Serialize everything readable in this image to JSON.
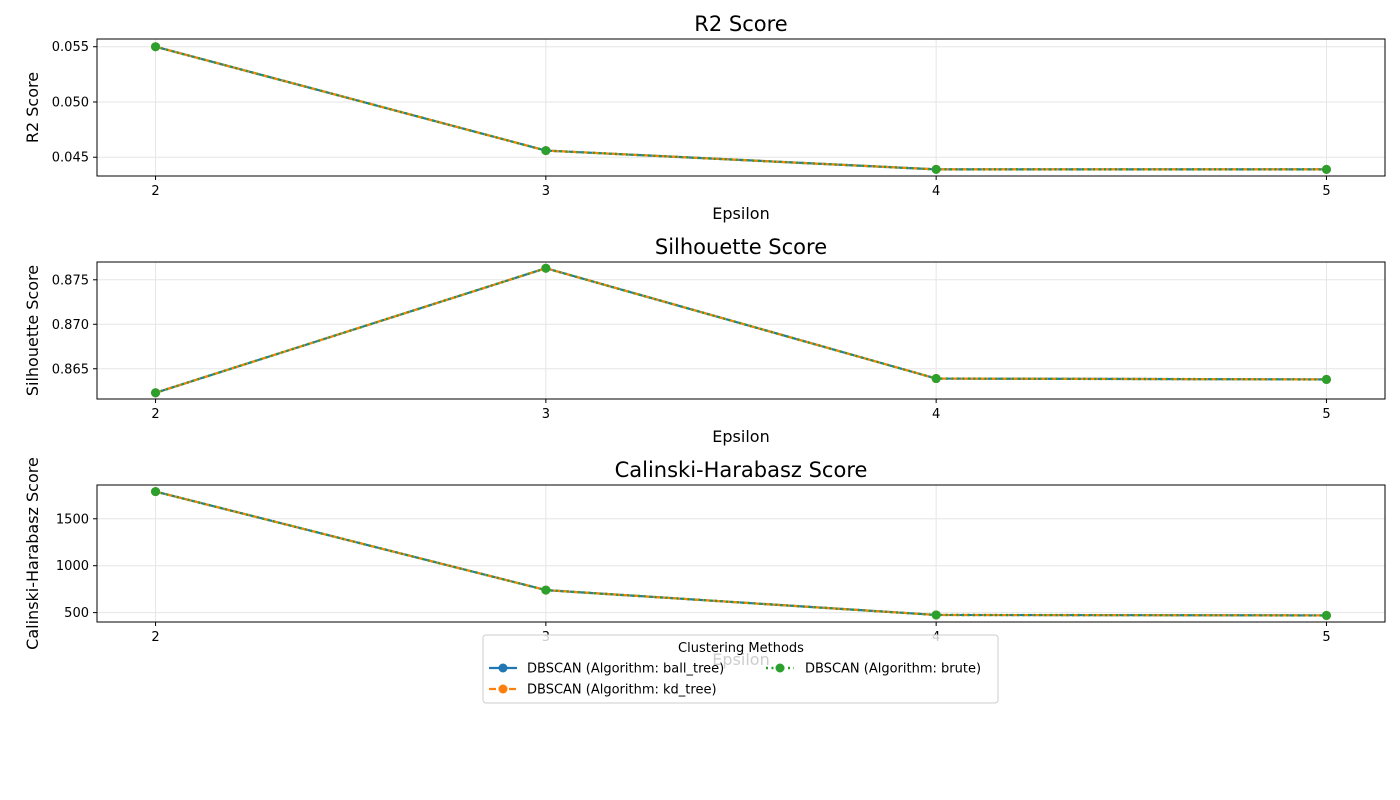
{
  "chart_data": [
    {
      "type": "line",
      "title": "R2 Score",
      "xlabel": "Epsilon",
      "ylabel": "R2 Score",
      "x": [
        2,
        3,
        4,
        5
      ],
      "xticks": [
        "2",
        "3",
        "4",
        "5"
      ],
      "ylim": [
        0.0433,
        0.0557
      ],
      "yticks": [
        0.045,
        0.05,
        0.055
      ],
      "ytick_labels": [
        "0.045",
        "0.050",
        "0.055"
      ],
      "grid": true,
      "series": [
        {
          "name": "DBSCAN (Algorithm: ball_tree)",
          "values": [
            0.055,
            0.0456,
            0.0439,
            0.0439
          ]
        },
        {
          "name": "DBSCAN (Algorithm: kd_tree)",
          "values": [
            0.055,
            0.0456,
            0.0439,
            0.0439
          ]
        },
        {
          "name": "DBSCAN (Algorithm: brute)",
          "values": [
            0.055,
            0.0456,
            0.0439,
            0.0439
          ]
        }
      ]
    },
    {
      "type": "line",
      "title": "Silhouette Score",
      "xlabel": "Epsilon",
      "ylabel": "Silhouette Score",
      "x": [
        2,
        3,
        4,
        5
      ],
      "xticks": [
        "2",
        "3",
        "4",
        "5"
      ],
      "ylim": [
        0.8616,
        0.877
      ],
      "yticks": [
        0.865,
        0.87,
        0.875
      ],
      "ytick_labels": [
        "0.865",
        "0.870",
        "0.875"
      ],
      "grid": true,
      "series": [
        {
          "name": "DBSCAN (Algorithm: ball_tree)",
          "values": [
            0.8623,
            0.8763,
            0.8639,
            0.8638
          ]
        },
        {
          "name": "DBSCAN (Algorithm: kd_tree)",
          "values": [
            0.8623,
            0.8763,
            0.8639,
            0.8638
          ]
        },
        {
          "name": "DBSCAN (Algorithm: brute)",
          "values": [
            0.8623,
            0.8763,
            0.8639,
            0.8638
          ]
        }
      ]
    },
    {
      "type": "line",
      "title": "Calinski-Harabasz Score",
      "xlabel": "Epsilon",
      "ylabel": "Calinski-Harabasz Score",
      "x": [
        2,
        3,
        4,
        5
      ],
      "xticks": [
        "2",
        "3",
        "4",
        "5"
      ],
      "ylim": [
        400,
        1860
      ],
      "yticks": [
        500,
        1000,
        1500
      ],
      "ytick_labels": [
        "500",
        "1000",
        "1500"
      ],
      "grid": true,
      "series": [
        {
          "name": "DBSCAN (Algorithm: ball_tree)",
          "values": [
            1790,
            740,
            475,
            470
          ]
        },
        {
          "name": "DBSCAN (Algorithm: kd_tree)",
          "values": [
            1790,
            740,
            475,
            470
          ]
        },
        {
          "name": "DBSCAN (Algorithm: brute)",
          "values": [
            1790,
            740,
            475,
            470
          ]
        }
      ]
    }
  ],
  "legend": {
    "title": "Clustering Methods",
    "placement": "bottom-center",
    "entries": [
      {
        "label": "DBSCAN (Algorithm: ball_tree)",
        "color": "#1f77b4",
        "linestyle": "solid",
        "marker": "circle"
      },
      {
        "label": "DBSCAN (Algorithm: kd_tree)",
        "color": "#ff7f0e",
        "linestyle": "dashed",
        "marker": "circle"
      },
      {
        "label": "DBSCAN (Algorithm: brute)",
        "color": "#2ca02c",
        "linestyle": "dotted",
        "marker": "circle"
      }
    ]
  },
  "colors": {
    "ball_tree": "#1f77b4",
    "kd_tree": "#ff7f0e",
    "brute": "#2ca02c",
    "grid": "#e6e6e6"
  }
}
